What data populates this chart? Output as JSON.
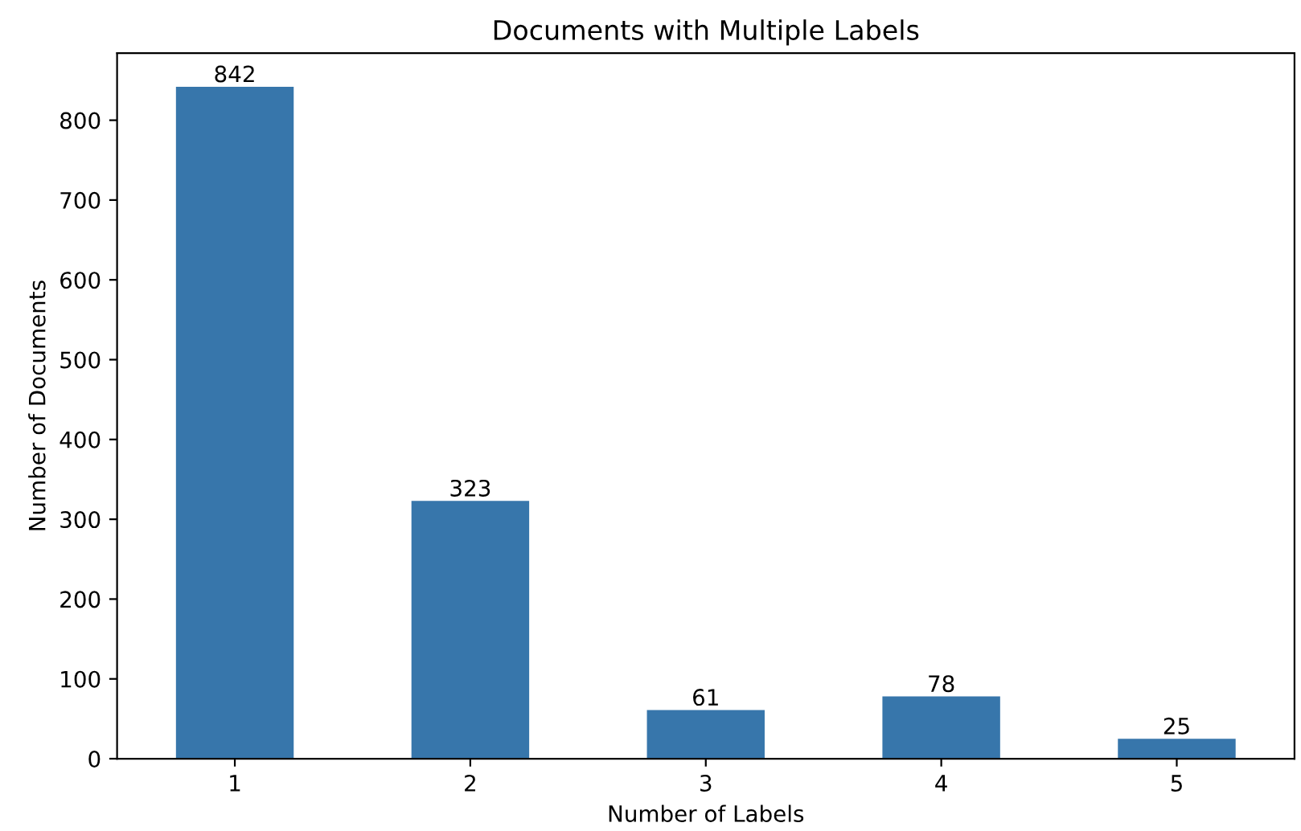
{
  "chart_data": {
    "type": "bar",
    "title": "Documents with Multiple Labels",
    "xlabel": "Number of Labels",
    "ylabel": "Number of Documents",
    "categories": [
      "1",
      "2",
      "3",
      "4",
      "5"
    ],
    "values": [
      842,
      323,
      61,
      78,
      25
    ],
    "color": "#3776ab",
    "ylim": [
      0,
      884
    ],
    "yticks": [
      0,
      100,
      200,
      300,
      400,
      500,
      600,
      700,
      800
    ],
    "data_labels": true,
    "grid": false,
    "legend": false
  }
}
